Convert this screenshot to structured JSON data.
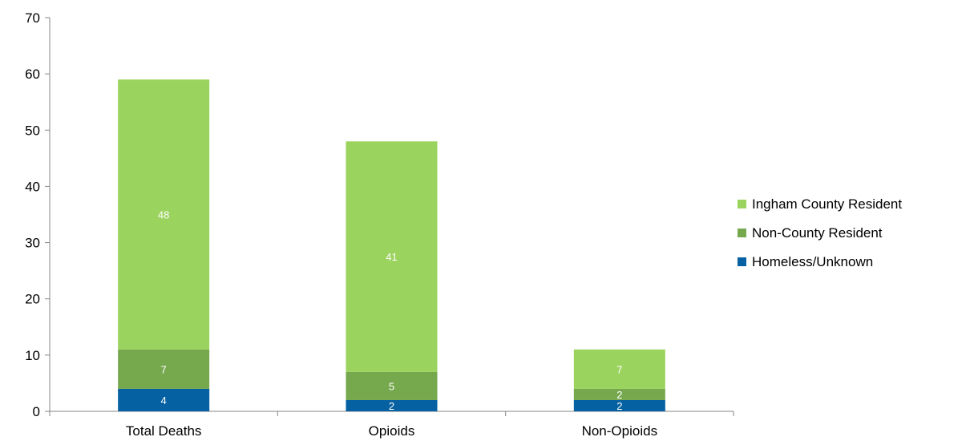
{
  "chart_data": {
    "type": "bar",
    "stacked": true,
    "categories": [
      "Total Deaths",
      "Opioids",
      "Non-Opioids"
    ],
    "series": [
      {
        "name": "Homeless/Unknown",
        "values": [
          4,
          2,
          2
        ],
        "color": "#0561A1"
      },
      {
        "name": "Non-County Resident",
        "values": [
          7,
          5,
          2
        ],
        "color": "#76A84E"
      },
      {
        "name": "Ingham County Resident",
        "values": [
          48,
          41,
          7
        ],
        "color": "#9BD35F"
      }
    ],
    "ylim": [
      0,
      70
    ],
    "yticks": [
      0,
      10,
      20,
      30,
      40,
      50,
      60,
      70
    ],
    "grid": false,
    "legend_position": "right",
    "title": "",
    "xlabel": "",
    "ylabel": ""
  }
}
